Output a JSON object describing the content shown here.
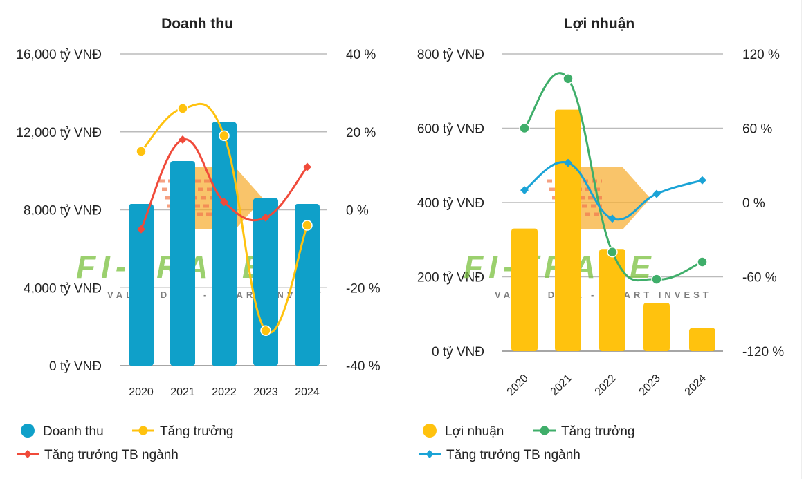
{
  "colors": {
    "revenue_bar": "#0fa0c9",
    "revenue_growth": "#ffc20e",
    "revenue_industry": "#f04a3a",
    "profit_bar": "#ffc20e",
    "profit_growth": "#3fae6a",
    "profit_industry": "#1aa3d6",
    "grid": "#bbbbbb"
  },
  "watermark": {
    "brand": "FI-TRADE",
    "tagline": "VALUE DATA - SMART INVEST"
  },
  "chart_data": [
    {
      "type": "bar",
      "title": "Doanh thu",
      "categories": [
        "2020",
        "2021",
        "2022",
        "2023",
        "2024"
      ],
      "left_axis": {
        "ylim": [
          0,
          16000
        ],
        "ticks": [
          "0 tỷ VNĐ",
          "4,000 tỷ VNĐ",
          "8,000 tỷ VNĐ",
          "12,000 tỷ VNĐ",
          "16,000 tỷ VNĐ"
        ]
      },
      "right_axis": {
        "ylim": [
          -40,
          40
        ],
        "ticks": [
          "-40 %",
          "-20 %",
          "0 %",
          "20 %",
          "40 %"
        ]
      },
      "series": [
        {
          "name": "Doanh thu",
          "kind": "bar",
          "axis": "left",
          "values": [
            8300,
            10500,
            12500,
            8600,
            8300
          ]
        },
        {
          "name": "Tăng trưởng",
          "kind": "line",
          "marker": "circle",
          "axis": "right",
          "values": [
            15,
            26,
            19,
            -31,
            -4
          ]
        },
        {
          "name": "Tăng trưởng TB ngành",
          "kind": "line",
          "marker": "diamond",
          "axis": "right",
          "values": [
            -5,
            18,
            2,
            -2,
            11
          ]
        }
      ],
      "legend": [
        "Doanh thu",
        "Tăng trưởng",
        "Tăng trưởng TB ngành"
      ]
    },
    {
      "type": "bar",
      "title": "Lợi nhuận",
      "categories": [
        "2020",
        "2021",
        "2022",
        "2023",
        "2024"
      ],
      "left_axis": {
        "ylim": [
          0,
          800
        ],
        "ticks": [
          "0 tỷ VNĐ",
          "200 tỷ VNĐ",
          "400 tỷ VNĐ",
          "600 tỷ VNĐ",
          "800 tỷ VNĐ"
        ]
      },
      "right_axis": {
        "ylim": [
          -120,
          120
        ],
        "ticks": [
          "-120 %",
          "-60 %",
          "0 %",
          "60 %",
          "120 %"
        ]
      },
      "series": [
        {
          "name": "Lợi nhuận",
          "kind": "bar",
          "axis": "left",
          "values": [
            330,
            650,
            275,
            130,
            62
          ]
        },
        {
          "name": "Tăng trưởng",
          "kind": "line",
          "marker": "circle",
          "axis": "right",
          "values": [
            60,
            100,
            -40,
            -62,
            -48
          ]
        },
        {
          "name": "Tăng trưởng TB ngành",
          "kind": "line",
          "marker": "diamond",
          "axis": "right",
          "values": [
            10,
            32,
            -13,
            7,
            18
          ]
        }
      ],
      "legend": [
        "Lợi nhuận",
        "Tăng trưởng",
        "Tăng trưởng TB ngành"
      ]
    }
  ]
}
